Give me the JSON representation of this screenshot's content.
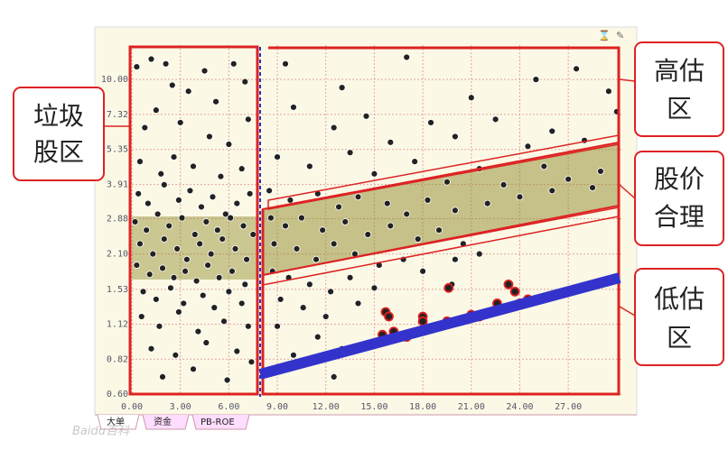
{
  "chart_data": {
    "type": "scatter",
    "log_y": true,
    "grid": true,
    "xlim": [
      0,
      30.4
    ],
    "ylim": [
      0.6,
      13.6
    ],
    "xticks": [
      {
        "value": 0,
        "label": "0.00"
      },
      {
        "value": 3,
        "label": "3.00"
      },
      {
        "value": 6,
        "label": "6.00"
      },
      {
        "value": 9,
        "label": "9.00"
      },
      {
        "value": 12,
        "label": "12.00"
      },
      {
        "value": 15,
        "label": "15.00"
      },
      {
        "value": 18,
        "label": "18.00"
      },
      {
        "value": 21,
        "label": "21.00"
      },
      {
        "value": 24,
        "label": "24.00"
      },
      {
        "value": 27,
        "label": "27.00"
      }
    ],
    "yticks": [
      {
        "value": 0.6,
        "label": "0.60"
      },
      {
        "value": 0.82,
        "label": "0.82"
      },
      {
        "value": 1.12,
        "label": "1.12"
      },
      {
        "value": 1.53,
        "label": "1.53"
      },
      {
        "value": 2.1,
        "label": "2.10"
      },
      {
        "value": 2.88,
        "label": "2.88"
      },
      {
        "value": 3.91,
        "label": "3.91"
      },
      {
        "value": 5.35,
        "label": "5.35"
      },
      {
        "value": 7.32,
        "label": "7.32"
      },
      {
        "value": 10,
        "label": "10.00"
      }
    ],
    "series": [
      {
        "color": "#222222",
        "x": [
          0.3,
          1.2,
          2.1,
          2.5,
          3.5,
          4.5,
          5.2,
          6.3,
          7,
          1.5,
          0.8,
          3.0,
          4.8,
          6.0,
          7.2,
          0.5,
          1.8,
          2.6,
          3.8,
          5.5,
          6.8,
          0.4,
          1.0,
          2.0,
          2.9,
          3.6,
          4.3,
          5.0,
          5.8,
          6.5,
          7.3,
          0.2,
          0.9,
          1.6,
          2.3,
          3.1,
          3.9,
          4.6,
          5.3,
          6.1,
          6.9,
          7.5,
          0.5,
          1.3,
          2.0,
          2.8,
          3.4,
          4.2,
          4.9,
          5.6,
          6.4,
          7.1,
          0.3,
          1.1,
          1.9,
          2.6,
          3.3,
          4.0,
          4.7,
          5.4,
          6.2,
          7.0,
          0.7,
          1.5,
          2.4,
          3.2,
          4.4,
          5.1,
          6.0,
          6.8,
          0.6,
          1.7,
          2.9,
          4.1,
          5.7,
          7.2,
          1.2,
          2.7,
          4.6,
          6.5,
          1.9,
          3.8,
          5.9,
          7.4
        ],
        "values": [
          11.2,
          12,
          11.5,
          9.5,
          9,
          10.8,
          8.2,
          11.5,
          9.8,
          7.6,
          6.5,
          6.8,
          6.0,
          5.6,
          7.0,
          4.8,
          4.3,
          5.0,
          4.6,
          4.2,
          4.5,
          3.6,
          3.3,
          3.9,
          3.4,
          3.7,
          3.2,
          3.5,
          3.0,
          3.3,
          3.6,
          2.8,
          2.6,
          3.0,
          2.7,
          2.9,
          2.5,
          2.8,
          2.6,
          2.9,
          2.7,
          2.5,
          2.3,
          2.1,
          2.4,
          2.2,
          2.0,
          2.3,
          2.1,
          2.4,
          2.2,
          2.0,
          1.9,
          1.75,
          1.85,
          1.7,
          1.8,
          1.65,
          1.9,
          1.7,
          1.8,
          1.6,
          1.5,
          1.4,
          1.55,
          1.35,
          1.45,
          1.3,
          1.5,
          1.35,
          1.2,
          1.1,
          1.25,
          1.05,
          1.15,
          1.1,
          0.9,
          0.85,
          0.95,
          0.88,
          0.7,
          0.75,
          0.68,
          0.8
        ]
      },
      {
        "color": "#222222",
        "x": [
          9.5,
          13,
          17,
          21,
          25,
          27.5,
          29.5,
          30,
          10,
          12.5,
          14.5,
          16,
          18.5,
          20,
          22.5,
          24.5,
          26,
          28,
          9,
          11,
          13.5,
          15,
          17.5,
          19.5,
          21.5,
          23,
          25.5,
          27,
          29,
          8.5,
          9.8,
          11.5,
          12.8,
          14,
          15.8,
          17,
          18.3,
          20,
          22,
          24,
          26,
          28.5,
          8.6,
          9.5,
          10.5,
          11.8,
          13.2,
          14.6,
          16,
          17.7,
          19,
          20.5,
          8.8,
          10.2,
          11.4,
          12.5,
          13.8,
          15.3,
          16.8,
          18,
          20,
          21.5,
          8.7,
          9.7,
          11,
          12.3,
          13.5,
          15,
          19.8,
          9.2,
          10.6,
          12,
          14,
          9,
          11.5,
          13,
          10,
          12.5
        ],
        "values": [
          11.5,
          9.3,
          12.2,
          8.5,
          10,
          11,
          9,
          7.5,
          7.8,
          6.5,
          7.2,
          5.7,
          6.8,
          6.0,
          7.0,
          5.5,
          6.3,
          5.8,
          5.0,
          4.6,
          5.2,
          4.3,
          4.8,
          4.0,
          4.5,
          3.9,
          4.6,
          4.1,
          4.4,
          3.7,
          3.4,
          3.6,
          3.2,
          3.5,
          3.3,
          3.0,
          3.4,
          3.1,
          3.3,
          3.5,
          3.7,
          3.8,
          2.9,
          2.7,
          2.9,
          2.6,
          2.8,
          2.5,
          2.7,
          2.4,
          2.6,
          2.3,
          2.3,
          2.2,
          2.0,
          2.3,
          2.1,
          1.9,
          2.0,
          1.8,
          2.0,
          2.1,
          1.8,
          1.7,
          1.6,
          1.5,
          1.7,
          1.55,
          1.6,
          1.4,
          1.3,
          1.2,
          1.35,
          1.1,
          1.0,
          0.9,
          0.85,
          0.7
        ]
      },
      {
        "color": "#222222",
        "outline": "#e02020",
        "x": [
          15.7,
          15.9,
          16.2,
          15.5,
          17,
          18,
          18,
          19.5,
          19.6,
          21,
          21.5,
          22.3,
          22.6,
          23.3,
          23.7,
          24.5,
          24
        ],
        "values": [
          1.25,
          1.2,
          1.05,
          1.02,
          1.0,
          1.2,
          1.15,
          1.15,
          1.55,
          1.22,
          1.2,
          1.25,
          1.35,
          1.6,
          1.5,
          1.4,
          1.35
        ]
      }
    ],
    "annotations": [
      {
        "lines": [
          "垃圾",
          "股区"
        ]
      },
      {
        "lines": [
          "高估",
          "区"
        ]
      },
      {
        "lines": [
          "股价",
          "合理"
        ]
      },
      {
        "lines": [
          "低估",
          "区"
        ]
      }
    ]
  },
  "tabs": [
    "大单",
    "资金",
    "PB-ROE"
  ],
  "watermark": "Baidu百科"
}
